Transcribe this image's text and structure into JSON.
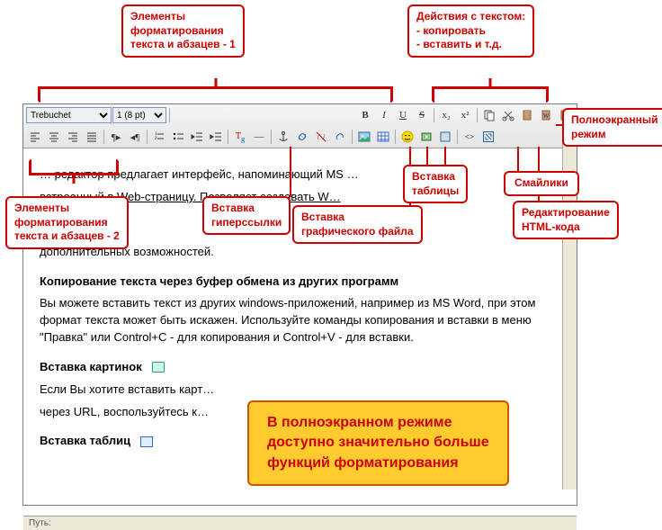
{
  "annotations": {
    "topLeft": "Элементы\nформатирования\nтекста и абзацев - 1",
    "topRight": "Действия с текстом:\n- копировать\n- вставить и т.д.",
    "fullscreen": "Полноэкранный\nрежим",
    "smileys": "Смайлики",
    "table": "Вставка\nтаблицы",
    "editHtml": "Редактирование\nHTML-кода",
    "image": "Вставка\nграфического файла",
    "hyperlink": "Вставка\nгиперссылки",
    "format2": "Элементы\nформатирования\nтекста и абзацев - 2"
  },
  "toolbar": {
    "font": "Trebuchet",
    "size": "1 (8 pt)"
  },
  "body": {
    "p1": "… редактор предлагает интерфейс, напоминающий MS …",
    "p2": "встроенный в Web-страницу. Позволяет создавать W…",
    "p3": "…",
    "p4": "дополнительных возможностей.",
    "h1": "Копирование текста через буфер обмена из других программ",
    "p5": "Вы можете вставить текст из других windows-приложений, например из MS Word, при этом формат текста может быть искажен. Используйте команды копирования и вставки в меню \"Правка\" или Control+C - для копирования и Control+V - для вставки.",
    "h2": "Вставка картинок",
    "p6": "Если Вы хотите вставить карт…",
    "p7": "через URL, воспользуйтесь к…",
    "h3": "Вставка таблиц"
  },
  "callout": "В полноэкранном режиме\nдоступно значительно больше\nфункций форматирования",
  "status": "Путь:",
  "colors": {
    "accent": "#cc0000",
    "calloutBg": "#ffcb2f",
    "calloutBorder": "#cc5500"
  }
}
